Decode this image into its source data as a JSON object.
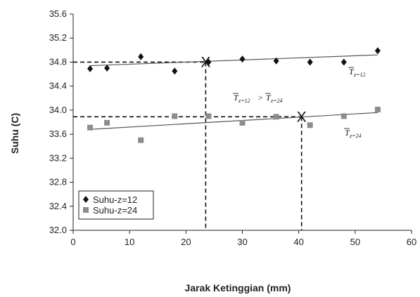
{
  "chart_data": {
    "type": "scatter",
    "xlabel": "Jarak Ketinggian (mm)",
    "ylabel": "Suhu (C)",
    "xlim": [
      0,
      60
    ],
    "ylim": [
      32.0,
      35.6
    ],
    "x_ticks": [
      "0",
      "10",
      "20",
      "30",
      "40",
      "50",
      "60"
    ],
    "y_ticks": [
      "32.0",
      "32.4",
      "32.8",
      "33.2",
      "33.6",
      "34.0",
      "34.4",
      "34.8",
      "35.2",
      "35.6"
    ],
    "legend_position": "bottom-left",
    "grid": false,
    "series": [
      {
        "name": "Suhu-z=12",
        "marker": "diamond",
        "color": "#111111",
        "x": [
          3,
          6,
          12,
          18,
          24,
          30,
          36,
          42,
          48,
          54
        ],
        "y": [
          34.69,
          34.7,
          34.89,
          34.65,
          34.8,
          34.85,
          34.82,
          34.8,
          34.8,
          34.99
        ],
        "trendline": {
          "x": [
            3,
            54
          ],
          "y": [
            34.74,
            34.92
          ]
        },
        "mean_label": {
          "symbol": "T",
          "subscript": "z=12"
        }
      },
      {
        "name": "Suhu-z=24",
        "marker": "square",
        "color": "#8c8c8c",
        "x": [
          3,
          6,
          12,
          18,
          24,
          30,
          36,
          42,
          48,
          54
        ],
        "y": [
          33.71,
          33.79,
          33.5,
          33.9,
          33.9,
          33.79,
          33.89,
          33.75,
          33.9,
          34.01
        ],
        "trendline": {
          "x": [
            3,
            54
          ],
          "y": [
            33.68,
            33.96
          ]
        },
        "mean_label": {
          "symbol": "T",
          "subscript": "z=24"
        }
      }
    ],
    "annotations": {
      "markers": [
        {
          "x": 23.5,
          "y": 34.8,
          "symbol": "X"
        },
        {
          "x": 40.5,
          "y": 33.89,
          "symbol": "X"
        }
      ],
      "comparison": {
        "left_sub": "z=12",
        "operator": ">",
        "right_sub": "z=24",
        "symbol": "T"
      }
    }
  }
}
